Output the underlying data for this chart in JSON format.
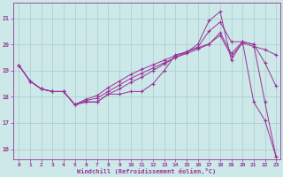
{
  "bg_color": "#cce8e8",
  "line_color": "#993399",
  "grid_color": "#aacccc",
  "xlabel": "Windchill (Refroidissement éolien,°C)",
  "xlim_min": -0.5,
  "xlim_max": 23.4,
  "ylim_min": 15.6,
  "ylim_max": 21.6,
  "xticks": [
    0,
    1,
    2,
    3,
    4,
    5,
    6,
    7,
    8,
    9,
    10,
    11,
    12,
    13,
    14,
    15,
    16,
    17,
    18,
    19,
    20,
    21,
    22,
    23
  ],
  "yticks": [
    16,
    17,
    18,
    19,
    20,
    21
  ],
  "line1": [
    19.2,
    18.6,
    18.3,
    18.2,
    18.2,
    17.7,
    17.8,
    17.8,
    18.1,
    18.1,
    18.2,
    18.2,
    18.5,
    19.0,
    19.6,
    19.7,
    20.0,
    20.9,
    21.25,
    19.4,
    20.1,
    17.8,
    17.1,
    15.7
  ],
  "line2": [
    19.2,
    18.6,
    18.3,
    18.2,
    18.2,
    17.7,
    17.8,
    17.8,
    18.1,
    18.3,
    18.55,
    18.75,
    19.0,
    19.25,
    19.5,
    19.7,
    19.9,
    20.5,
    20.85,
    20.1,
    20.1,
    20.0,
    17.8,
    15.7
  ],
  "line3": [
    19.2,
    18.6,
    18.3,
    18.2,
    18.2,
    17.7,
    17.85,
    17.95,
    18.2,
    18.45,
    18.7,
    18.9,
    19.1,
    19.3,
    19.5,
    19.65,
    19.82,
    20.0,
    20.45,
    19.65,
    20.1,
    20.0,
    19.3,
    18.4
  ],
  "line4": [
    19.2,
    18.6,
    18.3,
    18.2,
    18.2,
    17.7,
    17.9,
    18.05,
    18.35,
    18.6,
    18.85,
    19.05,
    19.22,
    19.4,
    19.57,
    19.72,
    19.87,
    20.02,
    20.35,
    19.55,
    20.05,
    19.92,
    19.8,
    19.6
  ]
}
